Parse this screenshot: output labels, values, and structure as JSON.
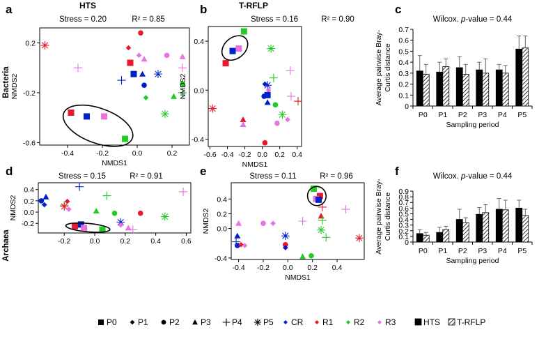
{
  "column_titles": {
    "hts": "HTS",
    "trflp": "T-RFLP"
  },
  "row_labels": {
    "bacteria": "Bacteria",
    "archaea": "Archaea"
  },
  "legend": {
    "periods": [
      {
        "label": "P0",
        "shape": "square"
      },
      {
        "label": "P1",
        "shape": "diamond"
      },
      {
        "label": "P2",
        "shape": "circle"
      },
      {
        "label": "P3",
        "shape": "triangle"
      },
      {
        "label": "P4",
        "shape": "plus"
      },
      {
        "label": "P5",
        "shape": "star"
      }
    ],
    "groups": [
      {
        "label": "CR",
        "color": "#0020c8"
      },
      {
        "label": "R1",
        "color": "#e8192c"
      },
      {
        "label": "R2",
        "color": "#22cc22"
      },
      {
        "label": "R3",
        "color": "#e873e0"
      }
    ],
    "methods": [
      {
        "label": "HTS",
        "fill": "solid"
      },
      {
        "label": "T-RFLP",
        "fill": "hatched"
      }
    ]
  },
  "chart_data": [
    {
      "id": "a",
      "panel_label": "a",
      "type": "scatter",
      "stress_text": "Stress = 0.20",
      "r2_text": "R² = 0.85",
      "xlabel": "NMDS1",
      "ylabel": "NMDS2",
      "xlim": [
        -0.56,
        0.3
      ],
      "ylim": [
        -0.62,
        0.32
      ],
      "xticks": [
        -0.4,
        -0.2,
        0.0,
        0.2
      ],
      "xticklabels": [
        "-0.4",
        "-0.2",
        "0.0",
        "0.2"
      ],
      "yticks": [
        -0.6,
        -0.2,
        0.2
      ],
      "yticklabels": [
        "-0.6",
        "-0.2",
        "0.2"
      ],
      "points": [
        {
          "x": -0.53,
          "y": 0.18,
          "shape": "star",
          "group": "R1"
        },
        {
          "x": -0.34,
          "y": 0.0,
          "shape": "plus",
          "group": "R3"
        },
        {
          "x": -0.05,
          "y": 0.16,
          "shape": "diamond",
          "group": "R1"
        },
        {
          "x": 0.02,
          "y": 0.28,
          "shape": "circle",
          "group": "R1"
        },
        {
          "x": 0.01,
          "y": 0.1,
          "shape": "diamond",
          "group": "R3"
        },
        {
          "x": -0.04,
          "y": 0.04,
          "shape": "square",
          "group": "R1"
        },
        {
          "x": 0.04,
          "y": 0.07,
          "shape": "triangle",
          "group": "R3"
        },
        {
          "x": 0.17,
          "y": 0.1,
          "shape": "circle",
          "group": "R3"
        },
        {
          "x": 0.26,
          "y": 0.09,
          "shape": "triangle",
          "group": "R3"
        },
        {
          "x": 0.26,
          "y": 0.0,
          "shape": "plus",
          "group": "R3"
        },
        {
          "x": -0.09,
          "y": -0.1,
          "shape": "plus",
          "group": "CR"
        },
        {
          "x": -0.02,
          "y": -0.05,
          "shape": "square",
          "group": "CR"
        },
        {
          "x": 0.03,
          "y": -0.05,
          "shape": "triangle",
          "group": "CR"
        },
        {
          "x": 0.12,
          "y": -0.05,
          "shape": "star",
          "group": "CR"
        },
        {
          "x": 0.04,
          "y": -0.14,
          "shape": "circle",
          "group": "CR"
        },
        {
          "x": 0.05,
          "y": -0.24,
          "shape": "diamond",
          "group": "R2"
        },
        {
          "x": 0.21,
          "y": -0.23,
          "shape": "triangle",
          "group": "R2"
        },
        {
          "x": 0.26,
          "y": -0.2,
          "shape": "plus",
          "group": "R2"
        },
        {
          "x": 0.26,
          "y": -0.13,
          "shape": "circle",
          "group": "R2"
        },
        {
          "x": 0.16,
          "y": -0.37,
          "shape": "star",
          "group": "R2"
        },
        {
          "x": -0.38,
          "y": -0.36,
          "shape": "square",
          "group": "R1"
        },
        {
          "x": -0.29,
          "y": -0.39,
          "shape": "square",
          "group": "CR"
        },
        {
          "x": -0.19,
          "y": -0.39,
          "shape": "square",
          "group": "R3"
        },
        {
          "x": -0.07,
          "y": -0.57,
          "shape": "square",
          "group": "R2"
        }
      ],
      "ellipse": {
        "cx": -0.225,
        "cy": -0.465,
        "rx": 0.21,
        "ry": 0.14,
        "angle_deg": 20
      }
    },
    {
      "id": "b",
      "panel_label": "b",
      "type": "scatter",
      "stress_text": "Stress = 0.16",
      "r2_text": "R² = 0.90",
      "xlabel": "NMDS1",
      "ylabel": "NMDS2",
      "xlim": [
        -0.62,
        0.45
      ],
      "ylim": [
        -0.46,
        0.52
      ],
      "xticks": [
        -0.6,
        -0.4,
        -0.2,
        0.0,
        0.2,
        0.4
      ],
      "xticklabels": [
        "-0.6",
        "-0.4",
        "-0.2",
        "0.0",
        "0.2",
        "0.4"
      ],
      "yticks": [
        -0.4,
        0.0,
        0.4
      ],
      "yticklabels": [
        "-0.4",
        "0.0",
        "0.4"
      ],
      "points": [
        {
          "x": -0.42,
          "y": 0.22,
          "shape": "square",
          "group": "R1"
        },
        {
          "x": -0.34,
          "y": 0.32,
          "shape": "square",
          "group": "CR"
        },
        {
          "x": -0.27,
          "y": 0.34,
          "shape": "square",
          "group": "R3"
        },
        {
          "x": -0.21,
          "y": 0.48,
          "shape": "square",
          "group": "R2"
        },
        {
          "x": 0.1,
          "y": 0.34,
          "shape": "star",
          "group": "R2"
        },
        {
          "x": 0.32,
          "y": 0.16,
          "shape": "plus",
          "group": "R3"
        },
        {
          "x": 0.03,
          "y": 0.05,
          "shape": "diamond",
          "group": "CR"
        },
        {
          "x": 0.06,
          "y": 0.04,
          "shape": "star",
          "group": "CR"
        },
        {
          "x": 0.13,
          "y": 0.1,
          "shape": "plus",
          "group": "R2"
        },
        {
          "x": 0.07,
          "y": 0.0,
          "shape": "diamond",
          "group": "R3"
        },
        {
          "x": 0.02,
          "y": -0.05,
          "shape": "circle",
          "group": "CR"
        },
        {
          "x": 0.06,
          "y": -0.04,
          "shape": "square",
          "group": "CR"
        },
        {
          "x": 0.06,
          "y": -0.1,
          "shape": "triangle",
          "group": "CR"
        },
        {
          "x": 0.15,
          "y": -0.12,
          "shape": "circle",
          "group": "R2"
        },
        {
          "x": 0.33,
          "y": -0.05,
          "shape": "plus",
          "group": "R3"
        },
        {
          "x": -0.57,
          "y": -0.15,
          "shape": "star",
          "group": "R1"
        },
        {
          "x": 0.41,
          "y": -0.09,
          "shape": "plus",
          "group": "R1"
        },
        {
          "x": 0.23,
          "y": -0.2,
          "shape": "star",
          "group": "R2"
        },
        {
          "x": 0.29,
          "y": -0.24,
          "shape": "diamond",
          "group": "R3"
        },
        {
          "x": 0.17,
          "y": -0.27,
          "shape": "circle",
          "group": "R3"
        },
        {
          "x": -0.22,
          "y": -0.24,
          "shape": "triangle",
          "group": "R1"
        },
        {
          "x": -0.22,
          "y": -0.28,
          "shape": "triangle",
          "group": "R3"
        },
        {
          "x": 0.03,
          "y": -0.43,
          "shape": "circle",
          "group": "R1"
        }
      ],
      "ellipse": {
        "cx": -0.315,
        "cy": 0.345,
        "rx": 0.165,
        "ry": 0.085,
        "angle_deg": -40
      }
    },
    {
      "id": "c",
      "panel_label": "c",
      "type": "bar",
      "annotation_prefix": "Wilcox. ",
      "annotation_italic": "p",
      "annotation_suffix": "-value = 0.44",
      "xlabel": "Sampling period",
      "ylabel": "Average pairwise Bray-Curtis distance",
      "ylabel_lines": [
        "Average pairwise Bray-",
        "Curtis distance"
      ],
      "ylim": [
        0,
        0.7
      ],
      "yticks": [
        0,
        0.1,
        0.2,
        0.3,
        0.4,
        0.5,
        0.6,
        0.7
      ],
      "yticklabels": [
        "0",
        "0.1",
        "0.2",
        "0.3",
        "0.4",
        "0.5",
        "0.6",
        "0.7"
      ],
      "categories": [
        "P0",
        "P1",
        "P2",
        "P3",
        "P4",
        "P5"
      ],
      "series": [
        {
          "name": "HTS",
          "values": [
            0.32,
            0.31,
            0.35,
            0.33,
            0.33,
            0.52
          ],
          "errors": [
            0.14,
            0.09,
            0.1,
            0.07,
            0.05,
            0.12
          ]
        },
        {
          "name": "T-RFLP",
          "values": [
            0.29,
            0.36,
            0.29,
            0.3,
            0.3,
            0.53
          ],
          "errors": [
            0.09,
            0.07,
            0.09,
            0.13,
            0.07,
            0.11
          ]
        }
      ]
    },
    {
      "id": "d",
      "panel_label": "d",
      "type": "scatter",
      "stress_text": "Stress = 0.15",
      "r2_text": "R² = 0.91",
      "xlabel": "",
      "ylabel": "NMDS2",
      "xlim": [
        -0.37,
        0.63
      ],
      "ylim": [
        -0.37,
        0.52
      ],
      "xticks": [
        -0.2,
        0.0,
        0.2,
        0.4,
        0.6
      ],
      "xticklabels": [
        "-0.2",
        "0.0",
        "0.2",
        "0.4",
        "0.6"
      ],
      "yticks": [
        -0.2,
        0.0,
        0.2,
        0.4
      ],
      "yticklabels": [
        "-0.2",
        "0.0",
        "0.2",
        "0.4"
      ],
      "points": [
        {
          "x": -0.1,
          "y": 0.45,
          "shape": "plus",
          "group": "CR"
        },
        {
          "x": 0.58,
          "y": 0.36,
          "shape": "plus",
          "group": "R3"
        },
        {
          "x": -0.32,
          "y": 0.27,
          "shape": "triangle",
          "group": "CR"
        },
        {
          "x": 0.08,
          "y": 0.29,
          "shape": "plus",
          "group": "R2"
        },
        {
          "x": -0.35,
          "y": 0.2,
          "shape": "circle",
          "group": "CR"
        },
        {
          "x": -0.33,
          "y": 0.13,
          "shape": "diamond",
          "group": "CR"
        },
        {
          "x": -0.18,
          "y": 0.19,
          "shape": "diamond",
          "group": "R1"
        },
        {
          "x": -0.2,
          "y": 0.12,
          "shape": "plus",
          "group": "R2"
        },
        {
          "x": -0.2,
          "y": 0.1,
          "shape": "star",
          "group": "R1"
        },
        {
          "x": -0.17,
          "y": 0.05,
          "shape": "diamond",
          "group": "R3"
        },
        {
          "x": 0.01,
          "y": 0.02,
          "shape": "triangle",
          "group": "R2"
        },
        {
          "x": 0.13,
          "y": -0.02,
          "shape": "circle",
          "group": "R2"
        },
        {
          "x": 0.3,
          "y": -0.02,
          "shape": "circle",
          "group": "R1"
        },
        {
          "x": 0.46,
          "y": -0.08,
          "shape": "star",
          "group": "R2"
        },
        {
          "x": 0.17,
          "y": -0.18,
          "shape": "star",
          "group": "CR"
        },
        {
          "x": 0.17,
          "y": -0.23,
          "shape": "diamond",
          "group": "R3"
        },
        {
          "x": -0.13,
          "y": -0.25,
          "shape": "square",
          "group": "R1"
        },
        {
          "x": -0.09,
          "y": -0.22,
          "shape": "square",
          "group": "CR"
        },
        {
          "x": -0.07,
          "y": -0.28,
          "shape": "square",
          "group": "R3"
        },
        {
          "x": 0.05,
          "y": -0.31,
          "shape": "square",
          "group": "R2"
        },
        {
          "x": 0.22,
          "y": -0.28,
          "shape": "triangle",
          "group": "R3"
        },
        {
          "x": 0.25,
          "y": -0.31,
          "shape": "plus",
          "group": "R3"
        }
      ],
      "ellipse": {
        "cx": -0.045,
        "cy": -0.275,
        "rx": 0.145,
        "ry": 0.075,
        "angle_deg": 5
      }
    },
    {
      "id": "e",
      "panel_label": "e",
      "type": "scatter",
      "stress_text": "Stress = 0.11",
      "r2_text": "R² = 0.96",
      "xlabel": "NMDS1",
      "ylabel": "NMDS2",
      "xlim": [
        -0.46,
        0.62
      ],
      "ylim": [
        -0.42,
        0.62
      ],
      "xticks": [
        -0.4,
        -0.2,
        0.0,
        0.2,
        0.4
      ],
      "xticklabels": [
        "-0.4",
        "-0.2",
        "0.0",
        "0.2",
        "0.4"
      ],
      "yticks": [
        -0.4,
        0.0,
        0.2,
        0.4
      ],
      "yticklabels": [
        "-0.4",
        "0.0",
        "0.2",
        "0.4"
      ],
      "points": [
        {
          "x": 0.21,
          "y": 0.54,
          "shape": "square",
          "group": "R2"
        },
        {
          "x": 0.26,
          "y": 0.44,
          "shape": "square",
          "group": "R1"
        },
        {
          "x": 0.23,
          "y": 0.4,
          "shape": "square",
          "group": "R3"
        },
        {
          "x": 0.25,
          "y": 0.39,
          "shape": "square",
          "group": "CR"
        },
        {
          "x": 0.28,
          "y": 0.29,
          "shape": "plus",
          "group": "R1"
        },
        {
          "x": 0.47,
          "y": 0.26,
          "shape": "plus",
          "group": "R3"
        },
        {
          "x": 0.27,
          "y": 0.17,
          "shape": "triangle",
          "group": "R1"
        },
        {
          "x": 0.28,
          "y": 0.11,
          "shape": "plus",
          "group": "R2"
        },
        {
          "x": -0.4,
          "y": 0.07,
          "shape": "triangle",
          "group": "R3"
        },
        {
          "x": -0.2,
          "y": 0.07,
          "shape": "circle",
          "group": "R3"
        },
        {
          "x": -0.12,
          "y": 0.07,
          "shape": "diamond",
          "group": "R3"
        },
        {
          "x": 0.12,
          "y": 0.1,
          "shape": "plus",
          "group": "R3"
        },
        {
          "x": -0.41,
          "y": -0.1,
          "shape": "triangle",
          "group": "CR"
        },
        {
          "x": -0.02,
          "y": -0.1,
          "shape": "star",
          "group": "CR"
        },
        {
          "x": 0.27,
          "y": -0.02,
          "shape": "star",
          "group": "R2"
        },
        {
          "x": 0.31,
          "y": -0.12,
          "shape": "plus",
          "group": "R2"
        },
        {
          "x": 0.58,
          "y": -0.13,
          "shape": "star",
          "group": "R1"
        },
        {
          "x": -0.42,
          "y": -0.18,
          "shape": "plus",
          "group": "CR"
        },
        {
          "x": -0.41,
          "y": -0.23,
          "shape": "circle",
          "group": "CR"
        },
        {
          "x": -0.38,
          "y": -0.22,
          "shape": "diamond",
          "group": "R1"
        },
        {
          "x": -0.35,
          "y": -0.23,
          "shape": "diamond",
          "group": "R3"
        },
        {
          "x": -0.02,
          "y": -0.22,
          "shape": "circle",
          "group": "R1"
        },
        {
          "x": -0.02,
          "y": -0.26,
          "shape": "diamond",
          "group": "CR"
        },
        {
          "x": 0.12,
          "y": -0.38,
          "shape": "triangle",
          "group": "R2"
        },
        {
          "x": 0.19,
          "y": -0.37,
          "shape": "circle",
          "group": "R2"
        }
      ],
      "ellipse": {
        "cx": 0.235,
        "cy": 0.44,
        "rx": 0.075,
        "ry": 0.13,
        "angle_deg": -15
      }
    },
    {
      "id": "f",
      "panel_label": "f",
      "type": "bar",
      "annotation_prefix": "Wilcox. ",
      "annotation_italic": "p",
      "annotation_suffix": "-value = 0.44",
      "xlabel": "Sampling period",
      "ylabel": "Average pairwise Bray-Curtis distance",
      "ylabel_lines": [
        "Average pairwise Bray-",
        "Curtis distance"
      ],
      "ylim": [
        0,
        0.9
      ],
      "yticks": [
        0,
        0.1,
        0.2,
        0.3,
        0.4,
        0.5,
        0.6,
        0.7,
        0.8,
        0.9
      ],
      "yticklabels": [
        "0",
        "0.1",
        "0.2",
        "0.3",
        "0.4",
        "0.5",
        "0.6",
        "0.7",
        "0.8",
        "0.9"
      ],
      "categories": [
        "P0",
        "P1",
        "P2",
        "P3",
        "P4",
        "P5"
      ],
      "series": [
        {
          "name": "HTS",
          "values": [
            0.15,
            0.17,
            0.4,
            0.49,
            0.58,
            0.6
          ],
          "errors": [
            0.07,
            0.09,
            0.18,
            0.12,
            0.19,
            0.14
          ]
        },
        {
          "name": "T-RFLP",
          "values": [
            0.12,
            0.22,
            0.34,
            0.52,
            0.57,
            0.47
          ],
          "errors": [
            0.05,
            0.06,
            0.09,
            0.14,
            0.17,
            0.11
          ]
        }
      ]
    }
  ]
}
